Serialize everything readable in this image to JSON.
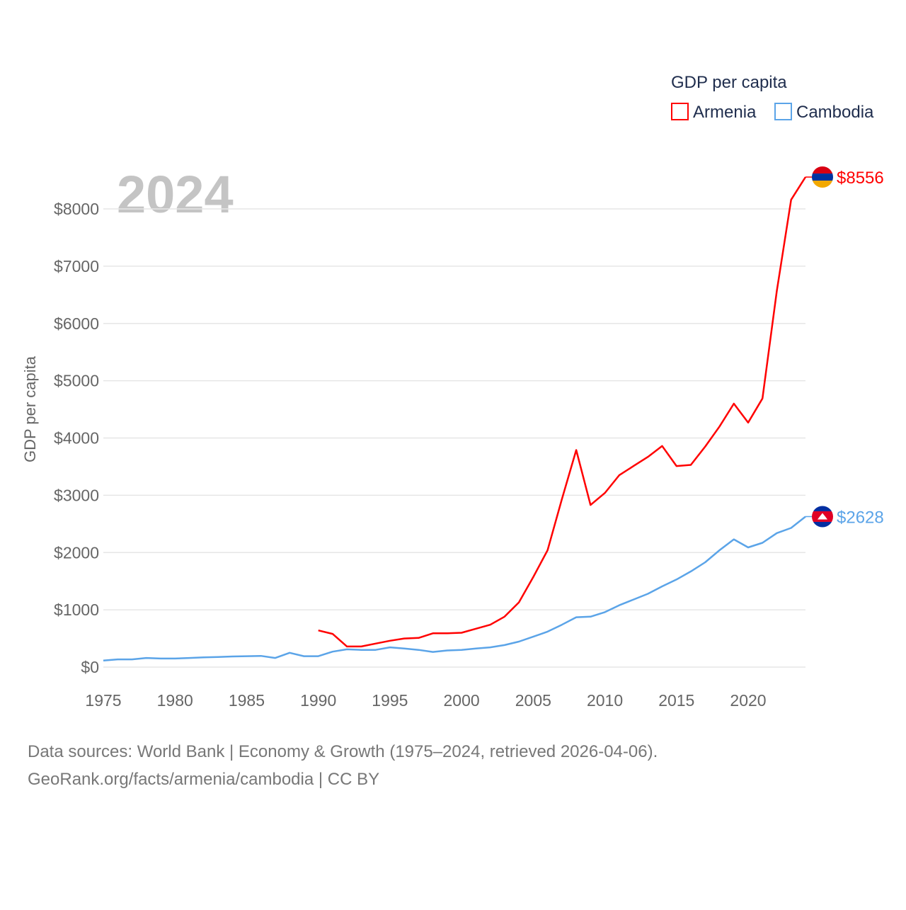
{
  "chart_data": {
    "type": "line",
    "title": "GDP per capita",
    "ylabel": "GDP per capita",
    "xlabel": "",
    "year_label": "2024",
    "xlim": [
      1975,
      2024
    ],
    "ylim": [
      0,
      8600
    ],
    "x_ticks": [
      1975,
      1980,
      1985,
      1990,
      1995,
      2000,
      2005,
      2010,
      2015,
      2020
    ],
    "y_ticks": [
      0,
      1000,
      2000,
      3000,
      4000,
      5000,
      6000,
      7000,
      8000
    ],
    "y_tick_labels": [
      "$0",
      "$1000",
      "$2000",
      "$3000",
      "$4000",
      "$5000",
      "$6000",
      "$7000",
      "$8000"
    ],
    "grid": true,
    "legend_position": "top-right",
    "series": [
      {
        "name": "Armenia",
        "color": "#ff0000",
        "end_label": "$8556",
        "start_year": 1990,
        "values": [
          640,
          580,
          360,
          360,
          410,
          460,
          500,
          510,
          590,
          590,
          600,
          670,
          740,
          880,
          1130,
          1570,
          2040,
          2930,
          3790,
          2830,
          3040,
          3350,
          3510,
          3670,
          3860,
          3510,
          3530,
          3850,
          4200,
          4600,
          4270,
          4690,
          6570,
          8160,
          8556
        ]
      },
      {
        "name": "Cambodia",
        "color": "#5ba4e8",
        "end_label": "$2628",
        "start_year": 1975,
        "values": [
          115,
          135,
          135,
          160,
          150,
          150,
          160,
          170,
          175,
          185,
          190,
          195,
          160,
          250,
          190,
          190,
          270,
          310,
          300,
          300,
          345,
          325,
          300,
          265,
          290,
          300,
          325,
          345,
          385,
          445,
          530,
          620,
          740,
          870,
          880,
          960,
          1080,
          1180,
          1280,
          1410,
          1530,
          1670,
          1830,
          2040,
          2230,
          2090,
          2170,
          2340,
          2430,
          2628
        ]
      }
    ]
  },
  "footer": {
    "line1": "Data sources: World Bank | Economy & Growth (1975–2024, retrieved 2026-04-06).",
    "line2": "GeoRank.org/facts/armenia/cambodia | CC BY"
  }
}
